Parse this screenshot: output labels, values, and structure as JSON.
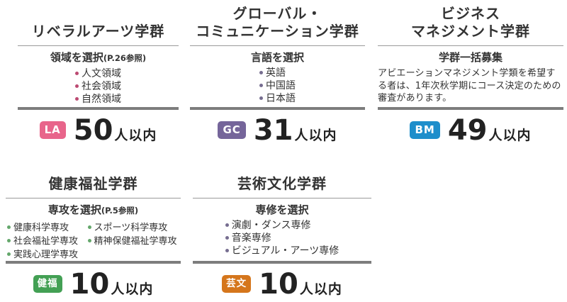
{
  "page": {
    "background": "#ffffff"
  },
  "groups": [
    {
      "title_lines": [
        "リベラルアーツ学群"
      ],
      "subtitle": "領域を選択",
      "subtitle_note": "(P.26参照)",
      "options": [
        "人文領域",
        "社会領域",
        "自然領域"
      ],
      "bullet_color": "#bc4a72",
      "badge_label": "LA",
      "badge_color": "#e8658b",
      "capacity_number": "50",
      "capacity_suffix": "人以内"
    },
    {
      "title_lines": [
        "グローバル・",
        "コミュニケーション学群"
      ],
      "subtitle": "言語を選択",
      "options": [
        "英語",
        "中国語",
        "日本語"
      ],
      "bullet_color": "#766d90",
      "badge_label": "GC",
      "badge_color": "#75659a",
      "capacity_number": "31",
      "capacity_suffix": "人以内"
    },
    {
      "title_lines": [
        "ビジネス",
        "マネジメント学群"
      ],
      "subtitle": "学群一括募集",
      "description": "アビエーションマネジメント学類を希望する者は、1年次秋学期にコース決定のための審査があります。",
      "badge_label": "BM",
      "badge_color": "#1e8ecb",
      "capacity_number": "49",
      "capacity_suffix": "人以内"
    },
    {
      "title_lines": [
        "健康福祉学群"
      ],
      "subtitle": "専攻を選択",
      "subtitle_note": "(P.5参照)",
      "options": [
        "健康科学専攻",
        "社会福祉学専攻",
        "実践心理学専攻",
        "スポーツ科学専攻",
        "精神保健福祉学専攻"
      ],
      "bullet_color": "#64a76b",
      "badge_label": "健福",
      "badge_color": "#43a054",
      "capacity_number": "10",
      "capacity_suffix": "人以内"
    },
    {
      "title_lines": [
        "芸術文化学群"
      ],
      "subtitle": "専修を選択",
      "options": [
        "演劇・ダンス専修",
        "音楽専修",
        "ビジュアル・アーツ専修"
      ],
      "bullet_color": "#766d90",
      "badge_label": "芸文",
      "badge_color": "#d5761c",
      "capacity_number": "10",
      "capacity_suffix": "人以内"
    }
  ]
}
